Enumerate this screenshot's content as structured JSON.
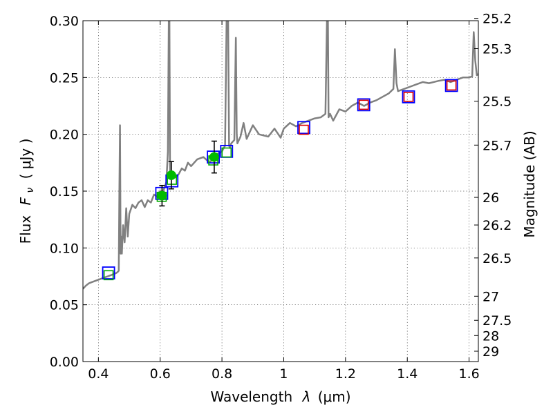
{
  "chart_data": {
    "type": "scatter",
    "title": "",
    "xlabel": "Wavelength",
    "xlabel_symbol": "λ",
    "xlabel_unit": "(μm)",
    "ylabel": "Flux",
    "ylabel_symbol": "F",
    "ylabel_subscript": "ν",
    "ylabel_unit": "( μJy )",
    "y2label": "Magnitude (AB)",
    "xlim": [
      0.35,
      1.63
    ],
    "ylim": [
      0.0,
      0.3
    ],
    "grid": true,
    "x_ticks": [
      {
        "value": 0.4,
        "label": "0.4"
      },
      {
        "value": 0.6,
        "label": "0.6"
      },
      {
        "value": 0.8,
        "label": "0.8"
      },
      {
        "value": 1.0,
        "label": "1"
      },
      {
        "value": 1.2,
        "label": "1.2"
      },
      {
        "value": 1.4,
        "label": "1.4"
      },
      {
        "value": 1.6,
        "label": "1.6"
      }
    ],
    "y_ticks": [
      {
        "value": 0.0,
        "label": "0.00"
      },
      {
        "value": 0.05,
        "label": "0.05"
      },
      {
        "value": 0.1,
        "label": "0.10"
      },
      {
        "value": 0.15,
        "label": "0.15"
      },
      {
        "value": 0.2,
        "label": "0.20"
      },
      {
        "value": 0.25,
        "label": "0.25"
      },
      {
        "value": 0.3,
        "label": "0.30"
      }
    ],
    "y2_ticks": [
      {
        "label": "25.2",
        "flux": 0.302
      },
      {
        "label": "25.3",
        "flux": 0.2754
      },
      {
        "label": "25.5",
        "flux": 0.2291
      },
      {
        "label": "25.7",
        "flux": 0.1905
      },
      {
        "label": "26",
        "flux": 0.1445
      },
      {
        "label": "26.2",
        "flux": 0.1202
      },
      {
        "label": "26.5",
        "flux": 0.0912
      },
      {
        "label": "27",
        "flux": 0.0575
      },
      {
        "label": "27.5",
        "flux": 0.0363
      },
      {
        "label": "28",
        "flux": 0.0229
      },
      {
        "label": "29",
        "flux": 0.0091
      }
    ],
    "sed_model": {
      "color": "#808080",
      "x": [
        0.35,
        0.36,
        0.37,
        0.38,
        0.39,
        0.4,
        0.41,
        0.42,
        0.43,
        0.44,
        0.45,
        0.458,
        0.463,
        0.466,
        0.468,
        0.47,
        0.472,
        0.474,
        0.476,
        0.48,
        0.485,
        0.49,
        0.495,
        0.5,
        0.51,
        0.52,
        0.53,
        0.54,
        0.55,
        0.56,
        0.57,
        0.58,
        0.59,
        0.6,
        0.61,
        0.62,
        0.625,
        0.628,
        0.63,
        0.632,
        0.635,
        0.64,
        0.65,
        0.66,
        0.67,
        0.68,
        0.69,
        0.7,
        0.72,
        0.74,
        0.76,
        0.78,
        0.8,
        0.81,
        0.815,
        0.818,
        0.82,
        0.823,
        0.826,
        0.83,
        0.84,
        0.845,
        0.848,
        0.85,
        0.86,
        0.87,
        0.88,
        0.9,
        0.92,
        0.95,
        0.97,
        0.99,
        1.0,
        1.02,
        1.04,
        1.06,
        1.08,
        1.1,
        1.12,
        1.135,
        1.14,
        1.143,
        1.145,
        1.15,
        1.16,
        1.18,
        1.2,
        1.22,
        1.24,
        1.26,
        1.28,
        1.3,
        1.32,
        1.34,
        1.355,
        1.36,
        1.365,
        1.37,
        1.39,
        1.41,
        1.43,
        1.45,
        1.47,
        1.5,
        1.52,
        1.54,
        1.56,
        1.58,
        1.6,
        1.61,
        1.615,
        1.62,
        1.625,
        1.63
      ],
      "y": [
        0.064,
        0.067,
        0.069,
        0.07,
        0.071,
        0.072,
        0.073,
        0.074,
        0.075,
        0.076,
        0.077,
        0.078,
        0.079,
        0.08,
        0.15,
        0.208,
        0.095,
        0.11,
        0.095,
        0.12,
        0.105,
        0.135,
        0.11,
        0.13,
        0.138,
        0.135,
        0.14,
        0.142,
        0.136,
        0.142,
        0.14,
        0.147,
        0.145,
        0.15,
        0.15,
        0.158,
        0.185,
        0.3,
        0.3,
        0.165,
        0.162,
        0.163,
        0.162,
        0.165,
        0.17,
        0.168,
        0.175,
        0.172,
        0.178,
        0.18,
        0.175,
        0.182,
        0.185,
        0.19,
        0.3,
        0.3,
        0.3,
        0.19,
        0.188,
        0.192,
        0.195,
        0.285,
        0.2,
        0.192,
        0.198,
        0.21,
        0.196,
        0.208,
        0.2,
        0.198,
        0.205,
        0.197,
        0.205,
        0.21,
        0.207,
        0.21,
        0.212,
        0.214,
        0.215,
        0.218,
        0.3,
        0.3,
        0.215,
        0.218,
        0.212,
        0.222,
        0.22,
        0.225,
        0.228,
        0.225,
        0.228,
        0.23,
        0.233,
        0.236,
        0.24,
        0.275,
        0.245,
        0.238,
        0.24,
        0.242,
        0.244,
        0.246,
        0.245,
        0.247,
        0.248,
        0.246,
        0.248,
        0.25,
        0.25,
        0.251,
        0.29,
        0.265,
        0.252,
        0.253
      ]
    },
    "blue_squares": {
      "color": "#0000ff",
      "points": [
        {
          "x": 0.433,
          "y": 0.078
        },
        {
          "x": 0.605,
          "y": 0.148
        },
        {
          "x": 0.638,
          "y": 0.159
        },
        {
          "x": 0.772,
          "y": 0.18
        },
        {
          "x": 0.815,
          "y": 0.185
        },
        {
          "x": 1.065,
          "y": 0.206
        },
        {
          "x": 1.259,
          "y": 0.226
        },
        {
          "x": 1.404,
          "y": 0.233
        },
        {
          "x": 1.543,
          "y": 0.243
        }
      ]
    },
    "green_squares": {
      "color": "#00aa00",
      "points": [
        {
          "x": 0.433,
          "y": 0.076
        },
        {
          "x": 0.605,
          "y": 0.145
        },
        {
          "x": 0.638,
          "y": 0.16
        },
        {
          "x": 0.772,
          "y": 0.177
        },
        {
          "x": 0.815,
          "y": 0.184
        }
      ]
    },
    "red_squares": {
      "color": "#dd0000",
      "points": [
        {
          "x": 1.065,
          "y": 0.204
        },
        {
          "x": 1.259,
          "y": 0.226
        },
        {
          "x": 1.404,
          "y": 0.233
        },
        {
          "x": 1.543,
          "y": 0.243
        }
      ]
    },
    "observed_points": {
      "color": "#00bb00",
      "points": [
        {
          "x": 0.606,
          "y": 0.146,
          "err": 0.009
        },
        {
          "x": 0.636,
          "y": 0.164,
          "err": 0.012
        },
        {
          "x": 0.775,
          "y": 0.18,
          "err": 0.014
        }
      ]
    }
  }
}
